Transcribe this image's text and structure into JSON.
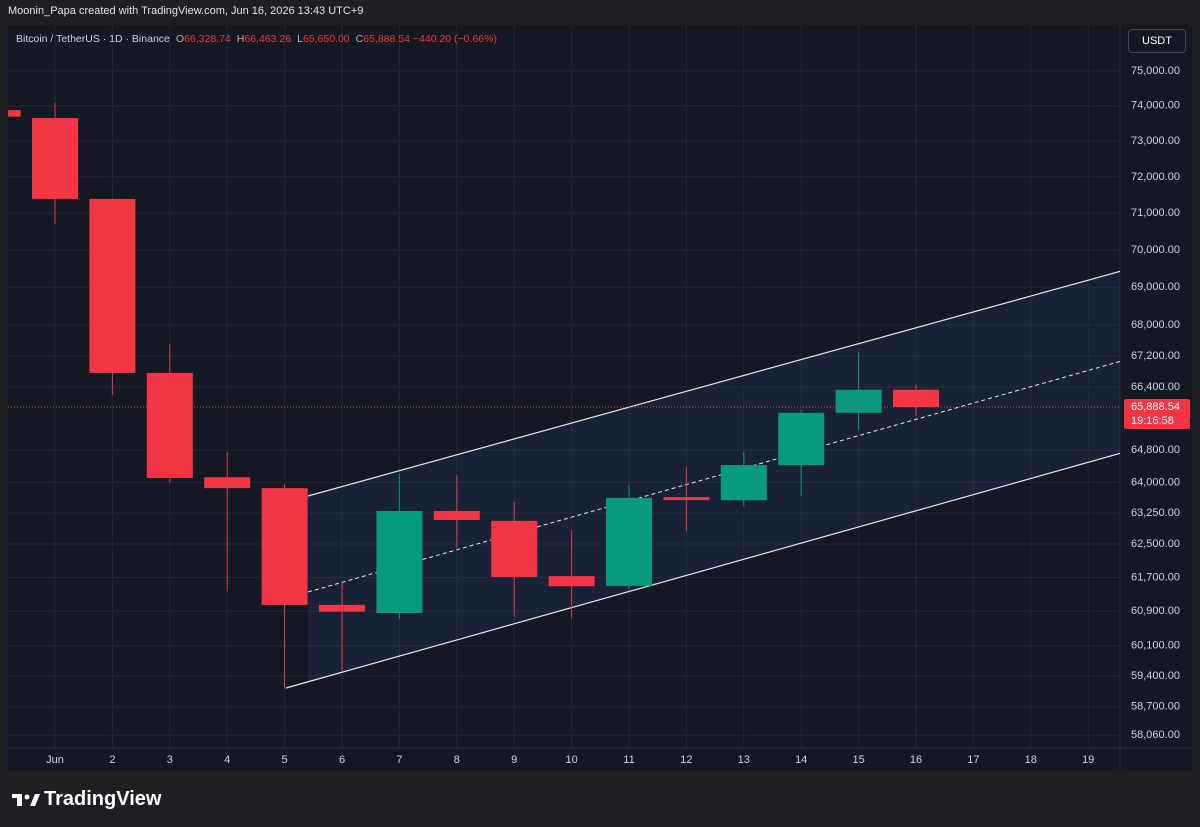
{
  "header": {
    "attribution": "Moonin_Papa created with TradingView.com, Jun 16, 2026 13:43 UTC+9"
  },
  "footer": {
    "logo": "TradingView"
  },
  "chart_data": {
    "type": "candlestick",
    "symbol": "Bitcoin / TetherUS · 1D · Binance",
    "ohlc_legend": [
      {
        "key": "O",
        "text": "66,328.74"
      },
      {
        "key": "H",
        "text": "66,463.26"
      },
      {
        "key": "L",
        "text": "65,650.00"
      },
      {
        "key": "C",
        "text": "65,888.54"
      }
    ],
    "change": "−440.20 (−0.66%)",
    "currency": "USDT",
    "categories": [
      null,
      "Jun",
      "2",
      "3",
      "4",
      "5",
      "6",
      "7",
      "8",
      "9",
      "10",
      "11",
      "12",
      "13",
      "14",
      "15",
      "16",
      "17",
      "18",
      "19"
    ],
    "open": [
      73880,
      73650,
      71390,
      66760,
      64130,
      63860,
      61050,
      60860,
      63300,
      63060,
      61730,
      61500,
      63640,
      63565,
      64430,
      65740,
      66328.74,
      null,
      null,
      null
    ],
    "high": [
      73900,
      74080,
      71400,
      67510,
      64760,
      63960,
      61570,
      64210,
      64180,
      63520,
      62840,
      63940,
      64380,
      64760,
      65810,
      67300,
      66463.26,
      null,
      null,
      null
    ],
    "low": [
      73680,
      70700,
      66200,
      64010,
      61370,
      59120,
      59490,
      60740,
      62400,
      60770,
      60740,
      61400,
      62810,
      63420,
      63670,
      65310,
      65650.0,
      null,
      null,
      null
    ],
    "close": [
      73690,
      71390,
      66760,
      64110,
      63860,
      61050,
      60890,
      63300,
      63080,
      61710,
      61490,
      63620,
      63565,
      64430,
      65740,
      66330,
      65888.54,
      null,
      null,
      null
    ],
    "up_color": "#089981",
    "down_color": "#f23645",
    "log": true,
    "grid": true,
    "ylim": [
      57774,
      76340
    ],
    "yticks": [
      {
        "value": 75000,
        "label": "75,000.00"
      },
      {
        "value": 74000,
        "label": "74,000.00"
      },
      {
        "value": 73000,
        "label": "73,000.00"
      },
      {
        "value": 72000,
        "label": "72,000.00"
      },
      {
        "value": 71000,
        "label": "71,000.00"
      },
      {
        "value": 70000,
        "label": "70,000.00"
      },
      {
        "value": 69000,
        "label": "69,000.00"
      },
      {
        "value": 68000,
        "label": "68,000.00"
      },
      {
        "value": 67200,
        "label": "67,200.00"
      },
      {
        "value": 66400,
        "label": "66,400.00"
      },
      {
        "value": 64800,
        "label": "64,800.00"
      },
      {
        "value": 64000,
        "label": "64,000.00"
      },
      {
        "value": 63250,
        "label": "63,250.00"
      },
      {
        "value": 62500,
        "label": "62,500.00"
      },
      {
        "value": 61700,
        "label": "61,700.00"
      },
      {
        "value": 60900,
        "label": "60,900.00"
      },
      {
        "value": 60100,
        "label": "60,100.00"
      },
      {
        "value": 59400,
        "label": "59,400.00"
      },
      {
        "value": 58700,
        "label": "58,700.00"
      },
      {
        "value": 58060,
        "label": "58,060.00"
      }
    ],
    "last_price": {
      "value": 65888.54,
      "label": "65,888.54"
    },
    "countdown": "19:16:58"
  }
}
